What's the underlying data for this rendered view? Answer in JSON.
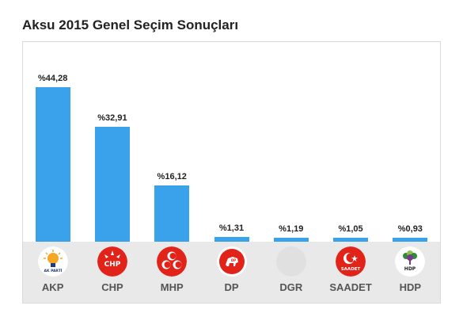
{
  "title": "Aksu 2015 Genel Seçim Sonuçları",
  "chart_data": {
    "type": "bar",
    "categories": [
      "AKP",
      "CHP",
      "MHP",
      "DP",
      "DGR",
      "SAADET",
      "HDP"
    ],
    "values": [
      44.28,
      32.91,
      16.12,
      1.31,
      1.19,
      1.05,
      0.93
    ],
    "value_labels": [
      "%44,28",
      "%32,91",
      "%16,12",
      "%1,31",
      "%1,19",
      "%1,05",
      "%0,93"
    ],
    "ylim": [
      0,
      50
    ],
    "grid": false,
    "bar_color": "#39a2ea"
  },
  "logos": {
    "akp": {
      "icon": "akp-lightbulb-icon",
      "text": "AK PARTİ",
      "color": "#f6a623"
    },
    "chp": {
      "icon": "chp-six-arrows-icon",
      "text": "CHP",
      "color": "#e2231a"
    },
    "mhp": {
      "icon": "mhp-three-crescents-icon",
      "color": "#e2231a"
    },
    "dp": {
      "icon": "dp-horse-icon",
      "text": "DP",
      "color": "#e2231a"
    },
    "dgr": {
      "icon": "dgr-blank-icon",
      "color": "#e0e0e0"
    },
    "saadet": {
      "icon": "saadet-crescent-star-icon",
      "text": "SAADET",
      "color": "#e2231a"
    },
    "hdp": {
      "icon": "hdp-tree-icon",
      "text": "HDP",
      "color": "#7a3a8a"
    }
  }
}
